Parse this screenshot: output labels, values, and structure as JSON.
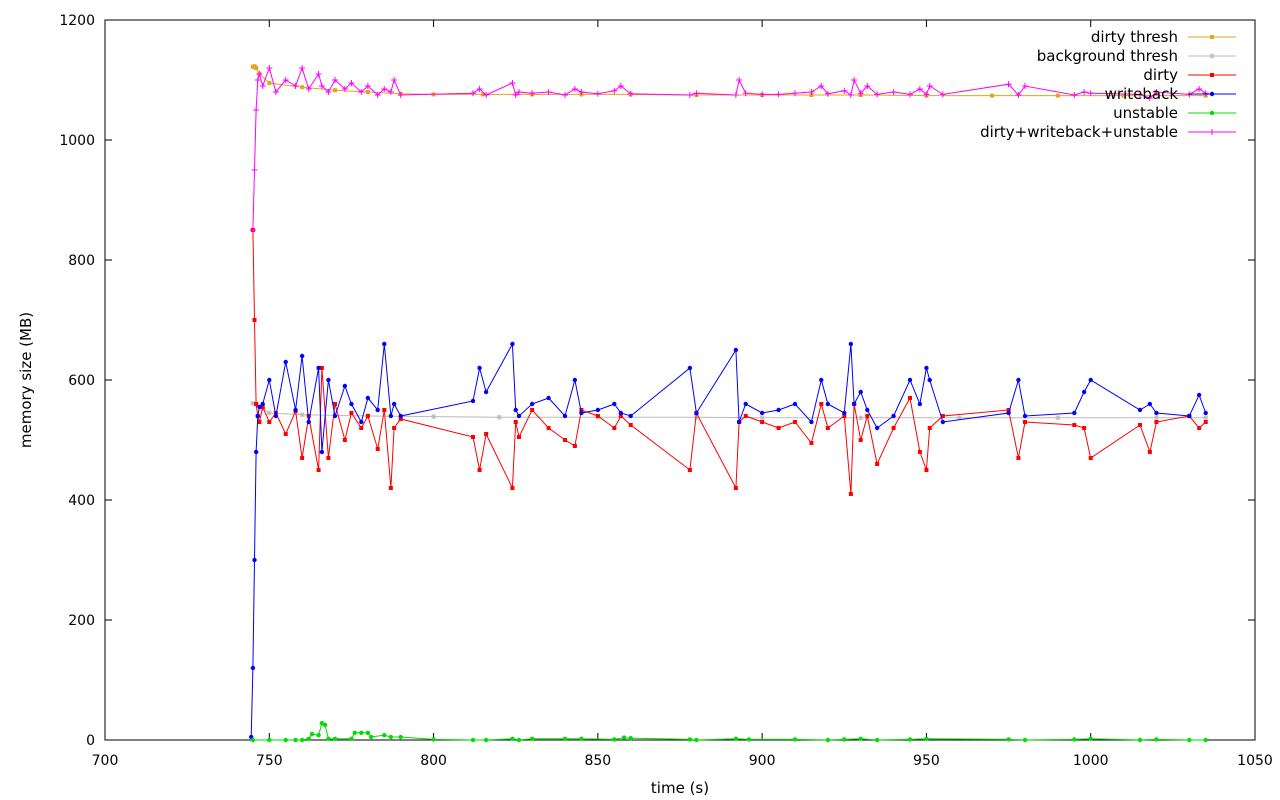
{
  "chart_data": {
    "type": "line",
    "xlabel": "time (s)",
    "ylabel": "memory size (MB)",
    "xlim": [
      700,
      1050
    ],
    "ylim": [
      0,
      1200
    ],
    "xticks": [
      "700",
      "750",
      "800",
      "850",
      "900",
      "950",
      "1000",
      "1050"
    ],
    "yticks": [
      "0",
      "200",
      "400",
      "600",
      "800",
      "1000",
      "1200"
    ],
    "grid": false,
    "legend_position": "top-right",
    "series": [
      {
        "name": "dirty thresh",
        "color": "#e8a317",
        "marker": "square",
        "x": [
          745,
          745.5,
          746,
          747,
          750,
          760,
          770,
          780,
          790,
          800,
          815,
          830,
          845,
          860,
          880,
          900,
          915,
          930,
          950,
          970,
          990,
          1010,
          1035
        ],
        "y": [
          1122,
          1123,
          1120,
          1110,
          1095,
          1088,
          1083,
          1080,
          1077,
          1076,
          1076,
          1076,
          1076,
          1076,
          1075,
          1075,
          1075,
          1075,
          1074,
          1074,
          1074,
          1074,
          1074
        ]
      },
      {
        "name": "background thresh",
        "color": "#bbbbbb",
        "marker": "star",
        "x": [
          745,
          746,
          748,
          750,
          760,
          780,
          800,
          820,
          850,
          880,
          900,
          930,
          960,
          990,
          1020,
          1035
        ],
        "y": [
          561,
          560,
          552,
          545,
          542,
          540,
          539,
          538,
          538,
          538,
          537,
          537,
          537,
          537,
          537,
          537
        ]
      },
      {
        "name": "dirty",
        "color": "#ff0000",
        "marker": "square",
        "x": [
          745,
          745.5,
          746,
          746.5,
          747,
          748,
          750,
          752,
          755,
          758,
          760,
          762,
          765,
          766,
          768,
          770,
          773,
          775,
          778,
          780,
          783,
          785,
          787,
          788,
          790,
          812,
          814,
          816,
          824,
          825,
          826,
          830,
          835,
          840,
          843,
          845,
          850,
          855,
          857,
          860,
          878,
          880,
          892,
          893,
          895,
          900,
          905,
          910,
          915,
          918,
          920,
          925,
          927,
          928,
          930,
          932,
          935,
          940,
          945,
          948,
          950,
          951,
          955,
          975,
          978,
          980,
          995,
          998,
          1000,
          1015,
          1018,
          1020,
          1030,
          1033,
          1035
        ],
        "y": [
          850,
          700,
          560,
          540,
          530,
          555,
          530,
          545,
          510,
          548,
          470,
          540,
          450,
          620,
          470,
          560,
          500,
          545,
          520,
          540,
          485,
          550,
          420,
          520,
          535,
          505,
          450,
          510,
          420,
          530,
          505,
          550,
          520,
          500,
          490,
          550,
          540,
          520,
          540,
          525,
          450,
          545,
          420,
          530,
          540,
          530,
          520,
          530,
          495,
          560,
          520,
          540,
          410,
          560,
          500,
          540,
          460,
          520,
          570,
          480,
          450,
          520,
          540,
          550,
          470,
          530,
          525,
          520,
          470,
          525,
          480,
          530,
          540,
          520,
          530
        ]
      },
      {
        "name": "writeback",
        "color": "#0000ff",
        "marker": "circle",
        "x": [
          744.5,
          745,
          745.5,
          746,
          746.5,
          747,
          748,
          750,
          752,
          755,
          758,
          760,
          762,
          765,
          766,
          768,
          770,
          773,
          775,
          778,
          780,
          783,
          785,
          787,
          788,
          790,
          812,
          814,
          816,
          824,
          825,
          826,
          830,
          835,
          840,
          843,
          845,
          850,
          855,
          857,
          860,
          878,
          880,
          892,
          893,
          895,
          900,
          905,
          910,
          915,
          918,
          920,
          925,
          927,
          928,
          930,
          932,
          935,
          940,
          945,
          948,
          950,
          951,
          955,
          975,
          978,
          980,
          995,
          998,
          1000,
          1015,
          1018,
          1020,
          1030,
          1033,
          1035
        ],
        "y": [
          5,
          120,
          300,
          480,
          540,
          555,
          560,
          600,
          540,
          630,
          550,
          640,
          530,
          620,
          480,
          600,
          540,
          590,
          560,
          530,
          570,
          550,
          660,
          540,
          560,
          540,
          565,
          620,
          580,
          660,
          550,
          540,
          560,
          570,
          540,
          600,
          545,
          550,
          560,
          545,
          540,
          620,
          545,
          650,
          530,
          560,
          545,
          550,
          560,
          530,
          600,
          560,
          545,
          660,
          560,
          580,
          550,
          520,
          540,
          600,
          560,
          620,
          600,
          530,
          545,
          600,
          540,
          545,
          580,
          600,
          550,
          560,
          545,
          540,
          575,
          545
        ]
      },
      {
        "name": "unstable",
        "color": "#00dd00",
        "marker": "circle",
        "x": [
          745,
          750,
          755,
          758,
          760,
          762,
          763,
          765,
          766,
          767,
          768,
          770,
          775,
          776,
          778,
          780,
          781,
          785,
          787,
          790,
          800,
          812,
          816,
          824,
          826,
          830,
          840,
          845,
          855,
          858,
          860,
          878,
          880,
          892,
          896,
          910,
          920,
          925,
          930,
          935,
          945,
          950,
          975,
          980,
          995,
          1000,
          1015,
          1020,
          1030,
          1035
        ],
        "y": [
          0,
          0,
          0,
          0,
          0,
          2,
          10,
          8,
          28,
          25,
          2,
          2,
          2,
          12,
          12,
          12,
          5,
          8,
          5,
          5,
          1,
          0,
          0,
          2,
          0,
          2,
          2,
          2,
          1,
          4,
          3,
          1,
          0,
          2,
          1,
          1,
          0,
          1,
          2,
          0,
          1,
          2,
          1,
          0,
          1,
          2,
          0,
          1,
          0,
          0
        ]
      },
      {
        "name": "dirty+writeback+unstable",
        "color": "#ff00ff",
        "marker": "plus",
        "x": [
          745,
          745.5,
          746,
          746.5,
          747,
          748,
          750,
          752,
          755,
          758,
          760,
          762,
          765,
          766,
          768,
          770,
          773,
          775,
          778,
          780,
          783,
          785,
          787,
          788,
          790,
          812,
          814,
          816,
          824,
          825,
          826,
          830,
          835,
          840,
          843,
          845,
          850,
          855,
          857,
          860,
          878,
          880,
          892,
          893,
          895,
          900,
          905,
          910,
          915,
          918,
          920,
          925,
          927,
          928,
          930,
          932,
          935,
          940,
          945,
          948,
          950,
          951,
          955,
          975,
          978,
          980,
          995,
          998,
          1000,
          1015,
          1018,
          1020,
          1030,
          1033,
          1035
        ],
        "y": [
          850,
          950,
          1050,
          1100,
          1110,
          1090,
          1120,
          1080,
          1100,
          1090,
          1120,
          1085,
          1110,
          1090,
          1080,
          1100,
          1085,
          1095,
          1080,
          1090,
          1075,
          1085,
          1080,
          1100,
          1075,
          1078,
          1085,
          1075,
          1095,
          1075,
          1080,
          1078,
          1080,
          1075,
          1085,
          1080,
          1077,
          1082,
          1090,
          1077,
          1075,
          1078,
          1075,
          1100,
          1078,
          1076,
          1076,
          1078,
          1080,
          1090,
          1077,
          1082,
          1075,
          1100,
          1078,
          1090,
          1076,
          1080,
          1076,
          1085,
          1076,
          1090,
          1076,
          1093,
          1075,
          1090,
          1075,
          1080,
          1078,
          1076,
          1070,
          1080,
          1076,
          1085,
          1078
        ]
      }
    ]
  }
}
